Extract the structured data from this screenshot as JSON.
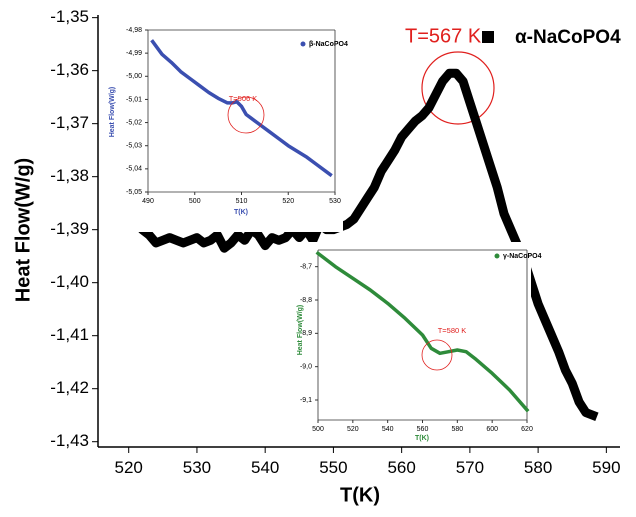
{
  "chart_data": [
    {
      "type": "line",
      "xlabel": "T(K)",
      "ylabel": "Heat Flow(W/g)",
      "annotation": "T=567 K",
      "x": [
        518,
        520,
        521,
        522,
        523,
        524,
        525,
        526,
        527,
        528,
        529,
        530,
        531,
        532,
        533,
        534,
        535,
        536,
        537,
        538,
        539,
        540,
        541,
        542,
        543,
        544,
        545,
        546,
        547,
        548,
        549,
        550,
        551,
        552,
        553,
        554,
        555,
        556,
        557,
        558,
        559,
        560,
        561,
        562,
        563,
        564,
        565,
        566,
        567,
        568,
        569,
        570,
        571,
        572,
        573,
        574,
        575,
        576,
        577,
        578,
        579,
        580,
        581,
        582,
        583,
        584,
        585,
        586,
        587,
        588
      ],
      "series": [
        {
          "name": "α-NaCoPO4",
          "color": "#000000",
          "values": [
            -1.3885,
            -1.388,
            -1.3885,
            -1.39,
            -1.391,
            -1.3925,
            -1.392,
            -1.3915,
            -1.392,
            -1.3925,
            -1.392,
            -1.3915,
            -1.3925,
            -1.392,
            -1.391,
            -1.3935,
            -1.3925,
            -1.391,
            -1.392,
            -1.39,
            -1.391,
            -1.393,
            -1.3915,
            -1.392,
            -1.3915,
            -1.39,
            -1.3915,
            -1.39,
            -1.392,
            -1.389,
            -1.39,
            -1.39,
            -1.3895,
            -1.389,
            -1.388,
            -1.386,
            -1.384,
            -1.382,
            -1.379,
            -1.377,
            -1.375,
            -1.3725,
            -1.371,
            -1.3695,
            -1.3685,
            -1.367,
            -1.3645,
            -1.362,
            -1.3605,
            -1.3605,
            -1.362,
            -1.366,
            -1.37,
            -1.374,
            -1.378,
            -1.382,
            -1.387,
            -1.39,
            -1.393,
            -1.396,
            -1.4,
            -1.404,
            -1.407,
            -1.41,
            -1.413,
            -1.4165,
            -1.419,
            -1.4225,
            -1.4245,
            -1.425
          ]
        }
      ],
      "xlim": [
        515.5,
        592
      ],
      "ylim": [
        -1.431,
        -1.3495
      ],
      "xticks": [
        520,
        530,
        540,
        550,
        560,
        570,
        580,
        590
      ],
      "yticks": [
        {
          "value": -1.35,
          "label": "-1,35"
        },
        {
          "value": -1.36,
          "label": "-1,36"
        },
        {
          "value": -1.37,
          "label": "-1,37"
        },
        {
          "value": -1.38,
          "label": "-1,38"
        },
        {
          "value": -1.39,
          "label": "-1,39"
        },
        {
          "value": -1.4,
          "label": "-1,40"
        },
        {
          "value": -1.41,
          "label": "-1,41"
        },
        {
          "value": -1.42,
          "label": "-1,42"
        },
        {
          "value": -1.43,
          "label": "-1,43"
        }
      ]
    },
    {
      "type": "line",
      "xlabel": "T(K)",
      "ylabel": "Heat Flow(W/g)",
      "annotation": "T=506 K",
      "x": [
        491,
        493,
        495,
        497,
        499,
        501,
        503,
        505,
        507,
        508,
        509,
        510,
        511,
        512,
        514,
        516,
        518,
        520,
        522,
        524,
        526,
        528,
        529
      ],
      "series": [
        {
          "name": "β-NaCoPO4",
          "color": "#3b4fb0",
          "values": [
            -4.985,
            -4.9905,
            -4.994,
            -4.998,
            -5.001,
            -5.004,
            -5.007,
            -5.0095,
            -5.0115,
            -5.0115,
            -5.011,
            -5.013,
            -5.0165,
            -5.018,
            -5.021,
            -5.024,
            -5.027,
            -5.03,
            -5.0325,
            -5.035,
            -5.038,
            -5.041,
            -5.0425
          ]
        }
      ],
      "xlim": [
        490,
        530
      ],
      "ylim": [
        -5.05,
        -4.98
      ],
      "xticks": [
        490,
        500,
        510,
        520,
        530
      ],
      "yticks": [
        {
          "value": -4.98,
          "label": "-4,98"
        },
        {
          "value": -4.99,
          "label": "-4,99"
        },
        {
          "value": -5.0,
          "label": "-5,00"
        },
        {
          "value": -5.01,
          "label": "-5,01"
        },
        {
          "value": -5.02,
          "label": "-5,02"
        },
        {
          "value": -5.03,
          "label": "-5,03"
        },
        {
          "value": -5.04,
          "label": "-5,04"
        },
        {
          "value": -5.05,
          "label": "-5,05"
        }
      ]
    },
    {
      "type": "line",
      "xlabel": "T(K)",
      "ylabel": "Heat Flow(W/g)",
      "annotation": "T=580 K",
      "x": [
        500,
        510,
        520,
        530,
        540,
        550,
        560,
        565,
        570,
        575,
        580,
        585,
        590,
        600,
        610,
        620
      ],
      "series": [
        {
          "name": "γ-NaCoPO4",
          "color": "#2e8b3a",
          "values": [
            -8.66,
            -8.7,
            -8.735,
            -8.77,
            -8.81,
            -8.855,
            -8.905,
            -8.945,
            -8.96,
            -8.955,
            -8.95,
            -8.955,
            -8.975,
            -9.02,
            -9.07,
            -9.13
          ]
        }
      ],
      "xlim": [
        500,
        620
      ],
      "ylim": [
        -9.16,
        -8.65
      ],
      "xticks": [
        500,
        520,
        540,
        560,
        580,
        600,
        620
      ],
      "yticks": [
        {
          "value": -8.7,
          "label": "-8,7"
        },
        {
          "value": -8.8,
          "label": "-8,8"
        },
        {
          "value": -8.9,
          "label": "-8,9"
        },
        {
          "value": -9.0,
          "label": "-9,0"
        },
        {
          "value": -9.1,
          "label": "-9,1"
        }
      ]
    }
  ]
}
